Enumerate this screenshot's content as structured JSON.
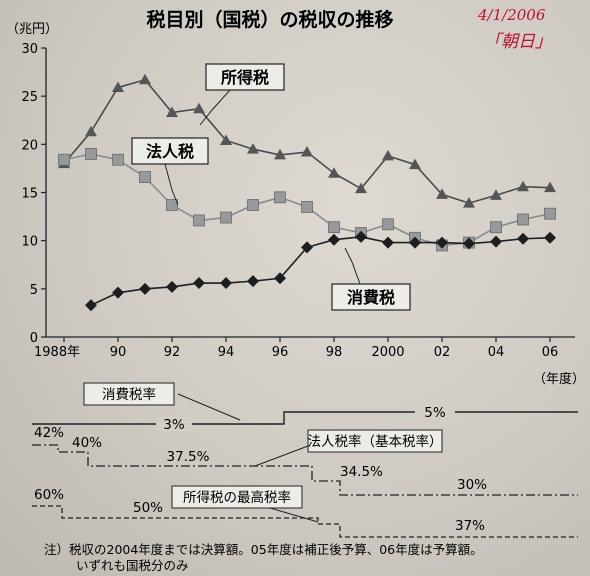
{
  "title": "税目別（国税）の税収の推移",
  "handwritten": {
    "date": "4/1/2006",
    "source": "「朝日」"
  },
  "chart_data": {
    "type": "line",
    "title": "税目別（国税）の税収の推移",
    "y_unit": "（兆円）",
    "x_unit": "（年度）",
    "ylim": [
      0,
      30
    ],
    "yticks": [
      0,
      5,
      10,
      15,
      20,
      25,
      30
    ],
    "xlim": [
      1988,
      2006
    ],
    "xticks": [
      {
        "x": 1988,
        "label": "1988年"
      },
      {
        "x": 1990,
        "label": "90"
      },
      {
        "x": 1992,
        "label": "92"
      },
      {
        "x": 1994,
        "label": "94"
      },
      {
        "x": 1996,
        "label": "96"
      },
      {
        "x": 1998,
        "label": "98"
      },
      {
        "x": 2000,
        "label": "2000"
      },
      {
        "x": 2002,
        "label": "02"
      },
      {
        "x": 2004,
        "label": "04"
      },
      {
        "x": 2006,
        "label": "06"
      }
    ],
    "grid": false,
    "series": [
      {
        "name": "所得税",
        "marker": "triangle",
        "color": "#4a4a4a",
        "x": [
          1988,
          1989,
          1990,
          1991,
          1992,
          1993,
          1994,
          1995,
          1996,
          1997,
          1998,
          1999,
          2000,
          2001,
          2002,
          2003,
          2004,
          2005,
          2006
        ],
        "y": [
          18.0,
          21.3,
          25.9,
          26.7,
          23.3,
          23.7,
          20.4,
          19.5,
          18.9,
          19.2,
          17.0,
          15.4,
          18.8,
          17.9,
          14.8,
          13.9,
          14.7,
          15.6,
          15.5
        ]
      },
      {
        "name": "法人税",
        "marker": "square",
        "color": "#8a8a8a",
        "x": [
          1988,
          1989,
          1990,
          1991,
          1992,
          1993,
          1994,
          1995,
          1996,
          1997,
          1998,
          1999,
          2000,
          2001,
          2002,
          2003,
          2004,
          2005,
          2006
        ],
        "y": [
          18.4,
          19.0,
          18.4,
          16.6,
          13.7,
          12.1,
          12.4,
          13.7,
          14.5,
          13.5,
          11.4,
          10.8,
          11.7,
          10.3,
          9.5,
          9.8,
          11.4,
          12.2,
          12.8
        ]
      },
      {
        "name": "消費税",
        "marker": "diamond",
        "color": "#1e1e1e",
        "x": [
          1989,
          1990,
          1991,
          1992,
          1993,
          1994,
          1995,
          1996,
          1997,
          1998,
          1999,
          2000,
          2001,
          2002,
          2003,
          2004,
          2005,
          2006
        ],
        "y": [
          3.3,
          4.6,
          5.0,
          5.2,
          5.6,
          5.6,
          5.8,
          6.1,
          9.3,
          10.1,
          10.4,
          9.8,
          9.8,
          9.8,
          9.7,
          9.9,
          10.2,
          10.3
        ]
      }
    ]
  },
  "rate_charts": [
    {
      "title": "消費税率",
      "labels": [
        {
          "x": 1993,
          "text": "3%"
        },
        {
          "x": 2001,
          "text": "5%"
        }
      ]
    },
    {
      "title": "法人税率（基本税率）",
      "labels": [
        {
          "x": 1988,
          "text": "42%"
        },
        {
          "x": 1989.5,
          "text": "40%"
        },
        {
          "x": 1993.3,
          "text": "37.5%"
        },
        {
          "x": 1998.7,
          "text": "34.5%"
        },
        {
          "x": 2003.3,
          "text": "30%"
        }
      ]
    },
    {
      "title": "所得税の最高税率",
      "labels": [
        {
          "x": 1988,
          "text": "60%"
        },
        {
          "x": 1991.5,
          "text": "50%"
        },
        {
          "x": 2003.8,
          "text": "37%"
        }
      ]
    }
  ],
  "note": {
    "line1": "注）税収の2004年度までは決算額。05年度は補正後予算、06年度は予算額。",
    "line2": "いずれも国税分のみ"
  }
}
